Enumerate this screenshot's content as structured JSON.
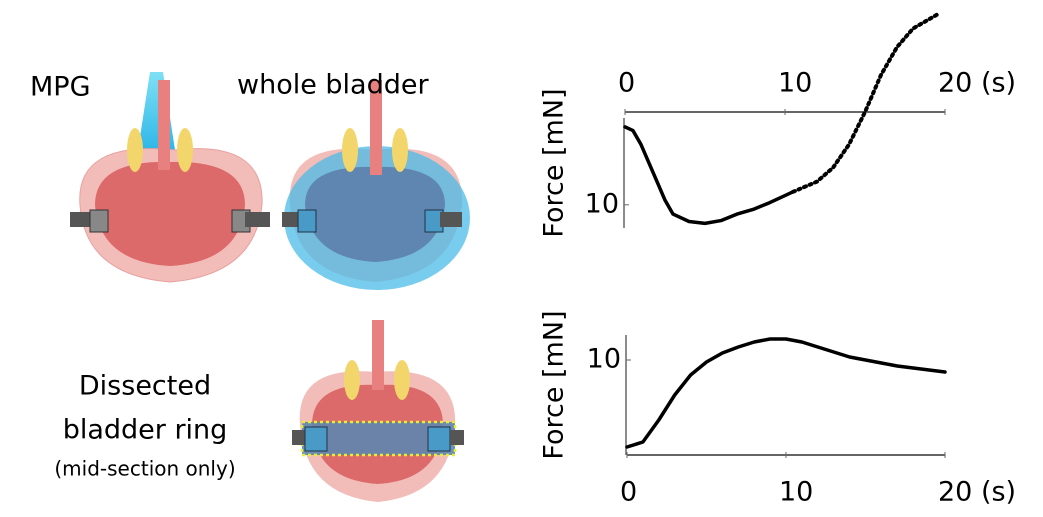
{
  "labels": {
    "mpg": "MPG",
    "whole": "whole bladder",
    "ring_1": "Dissected",
    "ring_2": "bladder ring",
    "ring_3": "(mid-section only)"
  },
  "chart_data": [
    {
      "type": "line",
      "y_label": "Force [mN]",
      "xlim": [
        0,
        20
      ],
      "xticks": [
        0,
        10,
        {
          "value": 20,
          "label": "20 (s)"
        }
      ],
      "ylim": [
        12.5,
        -11
      ],
      "yticks": [
        10
      ],
      "series": [
        {
          "color": "#000000",
          "style": "solid",
          "x": [
            0,
            0.5,
            1,
            1.5,
            2,
            2.5,
            3,
            4,
            5,
            6,
            7,
            8,
            9,
            10,
            10.5
          ],
          "values": [
            1.6,
            2,
            3.5,
            5.5,
            7.5,
            9.5,
            11,
            11.8,
            12,
            11.7,
            11,
            10.5,
            9.8,
            9,
            8.6
          ]
        },
        {
          "color": "#000000",
          "style": "dotted",
          "x": [
            10.5,
            12,
            13,
            14,
            15,
            16,
            17,
            18,
            19.5
          ],
          "values": [
            8.6,
            7.5,
            6,
            3.5,
            0,
            -4,
            -7,
            -9,
            -10.5
          ]
        }
      ]
    },
    {
      "type": "line",
      "y_label": "Force [mN]",
      "xlim": [
        0,
        20
      ],
      "xticks": [
        0,
        10,
        {
          "value": 20,
          "label": "20 (s)"
        }
      ],
      "ylim": [
        0.5,
        12.5
      ],
      "yticks": [
        10
      ],
      "series": [
        {
          "color": "#000000",
          "style": "solid",
          "x": [
            0,
            1,
            2,
            3,
            4,
            5,
            6,
            7,
            8,
            9,
            10,
            11,
            12,
            13,
            14,
            15,
            16,
            17,
            18,
            19,
            20
          ],
          "values": [
            1.3,
            1.8,
            4,
            6.5,
            8.5,
            9.8,
            10.7,
            11.3,
            11.8,
            12.1,
            12.1,
            11.8,
            11.3,
            10.8,
            10.3,
            10,
            9.7,
            9.4,
            9.2,
            9,
            8.8
          ]
        }
      ]
    }
  ]
}
